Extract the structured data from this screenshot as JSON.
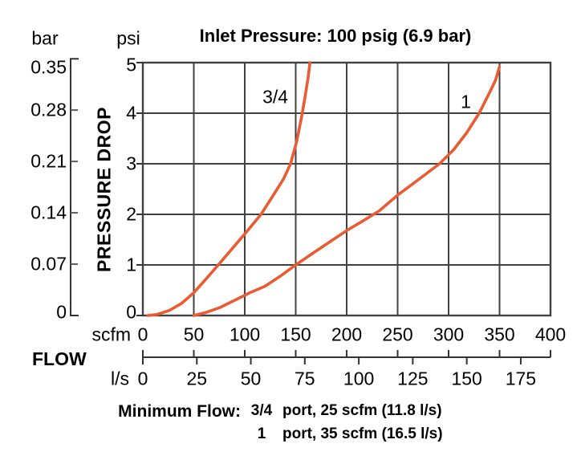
{
  "title": "Inlet Pressure: 100 psig (6.9 bar)",
  "axes": {
    "bar_unit": "bar",
    "psi_unit": "psi",
    "pressure_label": "PRESSURE DROP",
    "flow_label": "FLOW",
    "scfm_unit": "scfm",
    "ls_unit": "l/s"
  },
  "footer": {
    "label": "Minimum Flow:",
    "rows": [
      {
        "port": "3/4",
        "text": "port, 25 scfm (11.8 l/s)"
      },
      {
        "port": "1",
        "text": "port, 35 scfm (16.5 l/s)"
      }
    ]
  },
  "colors": {
    "curve": "#E95B33",
    "grid": "#414141",
    "axis": "#333333",
    "minor_tick": "#5a5a5a",
    "text": "#000000"
  },
  "chart_data": {
    "type": "line",
    "title": "Inlet Pressure: 100 psig (6.9 bar)",
    "xlabel": "FLOW",
    "ylabel": "PRESSURE DROP",
    "grid": true,
    "x_axis_scfm": {
      "unit": "scfm",
      "range": [
        0,
        400
      ],
      "ticks": [
        0,
        50,
        100,
        150,
        200,
        250,
        300,
        350,
        400
      ]
    },
    "x_axis_ls": {
      "unit": "l/s",
      "range": [
        0,
        188.8
      ],
      "ticks": [
        0,
        25,
        50,
        75,
        100,
        125,
        150,
        175
      ]
    },
    "y_axis_psi": {
      "unit": "psi",
      "range": [
        0,
        5
      ],
      "ticks": [
        5,
        4,
        3,
        2,
        1,
        0
      ]
    },
    "y_axis_bar": {
      "unit": "bar",
      "range": [
        0,
        0.352
      ],
      "ticks": [
        0.35,
        0.28,
        0.21,
        0.14,
        0.07,
        0
      ]
    },
    "series": [
      {
        "name": "3/4",
        "label_at": {
          "scfm": 130,
          "psi": 4.32
        },
        "points_scfm_psi": [
          [
            5,
            0
          ],
          [
            14,
            0.02
          ],
          [
            26,
            0.1
          ],
          [
            38,
            0.24
          ],
          [
            50,
            0.45
          ],
          [
            62,
            0.72
          ],
          [
            74,
            1.0
          ],
          [
            88,
            1.33
          ],
          [
            102,
            1.66
          ],
          [
            116,
            2.0
          ],
          [
            128,
            2.38
          ],
          [
            138,
            2.7
          ],
          [
            145,
            3.0
          ],
          [
            151,
            3.45
          ],
          [
            156,
            3.95
          ],
          [
            159,
            4.3
          ],
          [
            162,
            4.68
          ],
          [
            164,
            5.0
          ]
        ]
      },
      {
        "name": "1",
        "label_at": {
          "scfm": 317,
          "psi": 4.22
        },
        "points_scfm_psi": [
          [
            50,
            0
          ],
          [
            62,
            0.06
          ],
          [
            76,
            0.16
          ],
          [
            90,
            0.3
          ],
          [
            105,
            0.45
          ],
          [
            120,
            0.58
          ],
          [
            135,
            0.78
          ],
          [
            150,
            1.0
          ],
          [
            166,
            1.22
          ],
          [
            183,
            1.45
          ],
          [
            200,
            1.68
          ],
          [
            216,
            1.87
          ],
          [
            232,
            2.07
          ],
          [
            250,
            2.38
          ],
          [
            270,
            2.68
          ],
          [
            291,
            3.0
          ],
          [
            305,
            3.28
          ],
          [
            318,
            3.62
          ],
          [
            330,
            4.0
          ],
          [
            340,
            4.4
          ],
          [
            346,
            4.65
          ],
          [
            350,
            4.92
          ]
        ]
      }
    ]
  }
}
